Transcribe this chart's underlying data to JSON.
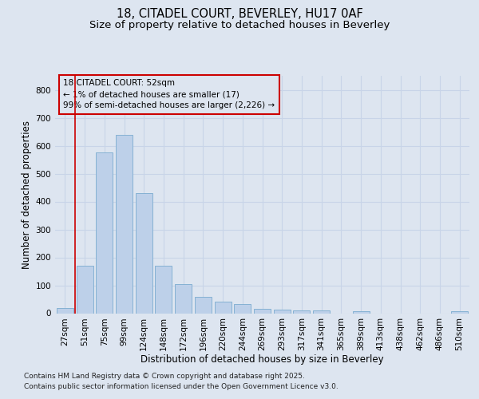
{
  "title_line1": "18, CITADEL COURT, BEVERLEY, HU17 0AF",
  "title_line2": "Size of property relative to detached houses in Beverley",
  "xlabel": "Distribution of detached houses by size in Beverley",
  "ylabel": "Number of detached properties",
  "categories": [
    "27sqm",
    "51sqm",
    "75sqm",
    "99sqm",
    "124sqm",
    "148sqm",
    "172sqm",
    "196sqm",
    "220sqm",
    "244sqm",
    "269sqm",
    "293sqm",
    "317sqm",
    "341sqm",
    "365sqm",
    "389sqm",
    "413sqm",
    "438sqm",
    "462sqm",
    "486sqm",
    "510sqm"
  ],
  "values": [
    20,
    170,
    575,
    640,
    430,
    170,
    105,
    58,
    42,
    32,
    15,
    12,
    10,
    10,
    0,
    7,
    0,
    0,
    0,
    0,
    7
  ],
  "bar_color": "#bdd0e9",
  "bar_edge_color": "#7aabcf",
  "background_color": "#dde5f0",
  "vline_color": "#cc0000",
  "vline_x": 0.5,
  "annotation_text": "18 CITADEL COURT: 52sqm\n← 1% of detached houses are smaller (17)\n99% of semi-detached houses are larger (2,226) →",
  "ann_box_facecolor": "#dde5f0",
  "ann_box_edgecolor": "#cc0000",
  "ylim": [
    0,
    850
  ],
  "yticks": [
    0,
    100,
    200,
    300,
    400,
    500,
    600,
    700,
    800
  ],
  "footnote1": "Contains HM Land Registry data © Crown copyright and database right 2025.",
  "footnote2": "Contains public sector information licensed under the Open Government Licence v3.0.",
  "title_fontsize": 10.5,
  "subtitle_fontsize": 9.5,
  "axis_label_fontsize": 8.5,
  "tick_fontsize": 7.5,
  "annotation_fontsize": 7.5,
  "footnote_fontsize": 6.5,
  "grid_color": "#c8d4e8",
  "font_family": "DejaVu Sans"
}
